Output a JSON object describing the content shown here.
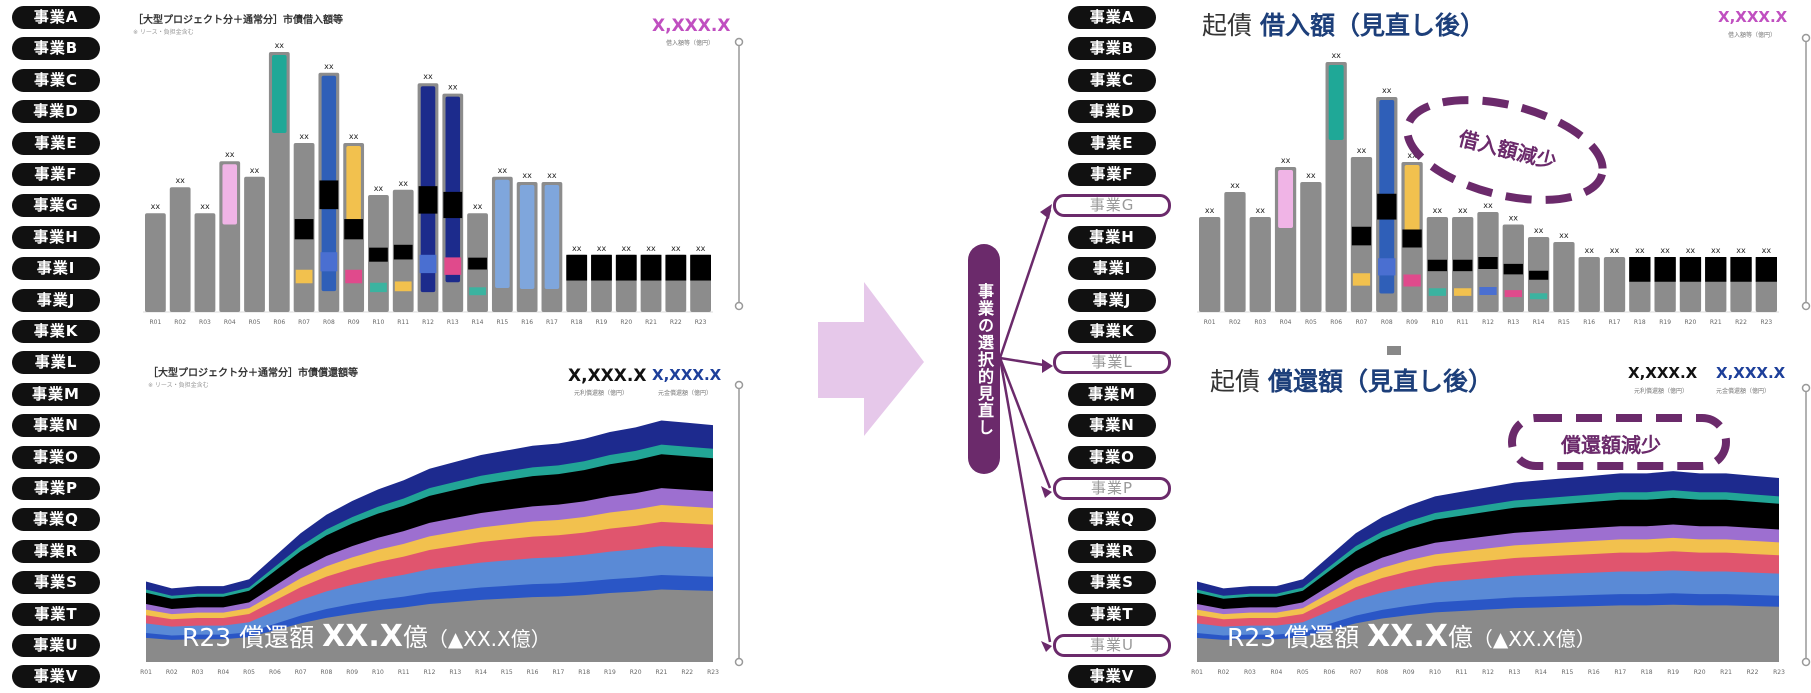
{
  "left_pills": [
    "事業A",
    "事業B",
    "事業C",
    "事業D",
    "事業E",
    "事業F",
    "事業G",
    "事業H",
    "事業I",
    "事業J",
    "事業K",
    "事業L",
    "事業M",
    "事業N",
    "事業O",
    "事業P",
    "事業Q",
    "事業R",
    "事業S",
    "事業T",
    "事業U",
    "事業V"
  ],
  "right_pills": [
    {
      "label": "事業A",
      "excluded": false
    },
    {
      "label": "事業B",
      "excluded": false
    },
    {
      "label": "事業C",
      "excluded": false
    },
    {
      "label": "事業D",
      "excluded": false
    },
    {
      "label": "事業E",
      "excluded": false
    },
    {
      "label": "事業F",
      "excluded": false
    },
    {
      "label": "事業G",
      "excluded": true
    },
    {
      "label": "事業H",
      "excluded": false
    },
    {
      "label": "事業I",
      "excluded": false
    },
    {
      "label": "事業J",
      "excluded": false
    },
    {
      "label": "事業K",
      "excluded": false
    },
    {
      "label": "事業L",
      "excluded": true
    },
    {
      "label": "事業M",
      "excluded": false
    },
    {
      "label": "事業N",
      "excluded": false
    },
    {
      "label": "事業O",
      "excluded": false
    },
    {
      "label": "事業P",
      "excluded": true
    },
    {
      "label": "事業Q",
      "excluded": false
    },
    {
      "label": "事業R",
      "excluded": false
    },
    {
      "label": "事業S",
      "excluded": false
    },
    {
      "label": "事業T",
      "excluded": false
    },
    {
      "label": "事業U",
      "excluded": true
    },
    {
      "label": "事業V",
      "excluded": false
    }
  ],
  "left_top": {
    "title": "［大型プロジェクト分＋通常分］市債借入額等",
    "subtitle": "※ リース・負担金含む",
    "value": "X,XXX.X",
    "value_caption": "借入額等（億円）",
    "value_color": "#c04fc0"
  },
  "left_bottom": {
    "title": "［大型プロジェクト分＋通常分］市債償還額等",
    "subtitle": "※ リース・負担金含む",
    "value1": "X,XXX.X",
    "value1_caption": "元利償還額（億円）",
    "value2": "X,XXX.X",
    "value2_caption": "元金償還額（億円）",
    "value2_color": "#1d3f9a",
    "overlay_prefix": "R23 償還額 ",
    "overlay_value": "XX.X",
    "overlay_unit": "億",
    "overlay_delta": "（▲XX.X億）"
  },
  "right_top": {
    "title_prefix": "起債 ",
    "title_bold": "借入額（見直し後）",
    "value": "X,XXX.X",
    "value_caption": "借入額等（億円）",
    "value_color": "#c04fc0",
    "callout": "借入額減少"
  },
  "right_bottom": {
    "title_prefix": "起債 ",
    "title_bold": "償還額（見直し後）",
    "value1": "X,XXX.X",
    "value1_caption": "元利償還額（億円）",
    "value2": "X,XXX.X",
    "value2_caption": "元金償還額（億円）",
    "value2_color": "#1d3f9a",
    "callout": "償還額減少",
    "overlay_prefix": "R23 償還額 ",
    "overlay_value": "XX.X",
    "overlay_unit": "億",
    "overlay_delta": "（▲XX.X億）"
  },
  "center_label": "事業の選択的見直し",
  "bar_label": "xx",
  "axis_years": [
    "R01",
    "R02",
    "R03",
    "R04",
    "R05",
    "R06",
    "R07",
    "R08",
    "R09",
    "R10",
    "R11",
    "R12",
    "R13",
    "R14",
    "R15",
    "R16",
    "R17",
    "R18",
    "R19",
    "R20",
    "R21",
    "R22",
    "R23"
  ],
  "chart_data": [
    {
      "type": "bar",
      "title": "［大型プロジェクト分＋通常分］市債借入額等",
      "categories": [
        "R01",
        "R02",
        "R03",
        "R04",
        "R05",
        "R06",
        "R07",
        "R08",
        "R09",
        "R10",
        "R11",
        "R12",
        "R13",
        "R14",
        "R15",
        "R16",
        "R17",
        "R18",
        "R19",
        "R20",
        "R21",
        "R22",
        "R23"
      ],
      "values": [
        0.38,
        0.48,
        0.38,
        0.58,
        0.52,
        1.0,
        0.65,
        0.92,
        0.65,
        0.45,
        0.47,
        0.88,
        0.84,
        0.38,
        0.52,
        0.5,
        0.5,
        0.22,
        0.22,
        0.22,
        0.22,
        0.22,
        0.22
      ]
    },
    {
      "type": "area",
      "title": "［大型プロジェクト分＋通常分］市債償還額等",
      "categories": [
        "R01",
        "R02",
        "R03",
        "R04",
        "R05",
        "R06",
        "R07",
        "R08",
        "R09",
        "R10",
        "R11",
        "R12",
        "R13",
        "R14",
        "R15",
        "R16",
        "R17",
        "R18",
        "R19",
        "R20",
        "R21",
        "R22",
        "R23"
      ],
      "values": [
        0.35,
        0.32,
        0.33,
        0.33,
        0.36,
        0.46,
        0.56,
        0.64,
        0.7,
        0.75,
        0.79,
        0.84,
        0.87,
        0.9,
        0.92,
        0.94,
        0.95,
        0.97,
        1.0,
        1.02,
        1.05,
        1.04,
        1.03
      ]
    },
    {
      "type": "bar",
      "title": "借入額（見直し後）",
      "categories": [
        "R01",
        "R02",
        "R03",
        "R04",
        "R05",
        "R06",
        "R07",
        "R08",
        "R09",
        "R10",
        "R11",
        "R12",
        "R13",
        "R14",
        "R15",
        "R16",
        "R17",
        "R18",
        "R19",
        "R20",
        "R21",
        "R22",
        "R23"
      ],
      "values": [
        0.38,
        0.48,
        0.38,
        0.58,
        0.52,
        1.0,
        0.62,
        0.86,
        0.6,
        0.38,
        0.38,
        0.4,
        0.35,
        0.3,
        0.28,
        0.22,
        0.22,
        0.22,
        0.22,
        0.22,
        0.22,
        0.22,
        0.22
      ]
    },
    {
      "type": "area",
      "title": "償還額（見直し後）",
      "categories": [
        "R01",
        "R02",
        "R03",
        "R04",
        "R05",
        "R06",
        "R07",
        "R08",
        "R09",
        "R10",
        "R11",
        "R12",
        "R13",
        "R14",
        "R15",
        "R16",
        "R17",
        "R18",
        "R19",
        "R20",
        "R21",
        "R22",
        "R23"
      ],
      "values": [
        0.35,
        0.32,
        0.33,
        0.33,
        0.36,
        0.46,
        0.56,
        0.63,
        0.68,
        0.72,
        0.74,
        0.76,
        0.78,
        0.79,
        0.8,
        0.81,
        0.82,
        0.82,
        0.83,
        0.82,
        0.82,
        0.81,
        0.8
      ]
    }
  ]
}
